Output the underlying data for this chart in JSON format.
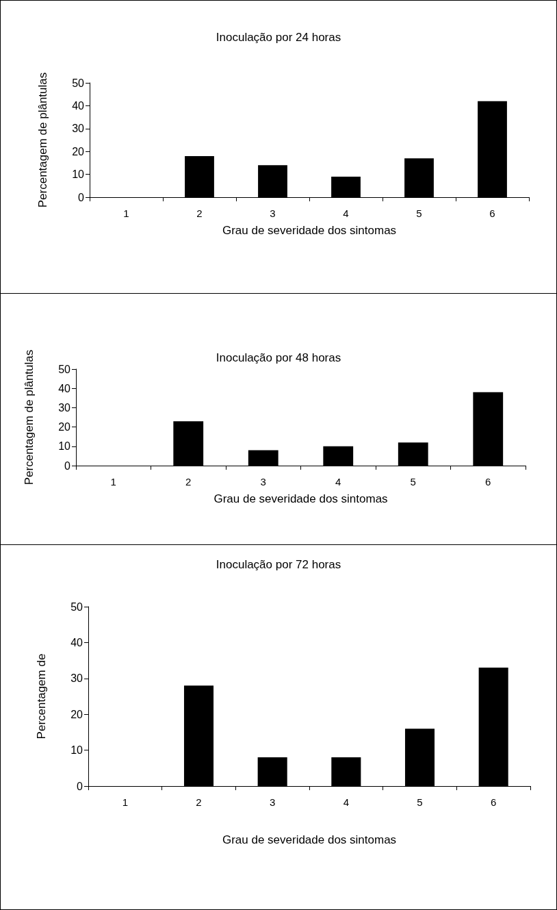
{
  "chart_data": [
    {
      "type": "bar",
      "title": "Inoculação por 24 horas",
      "xlabel": "Grau de severidade dos sintomas",
      "ylabel": "Percentagem de plântulas",
      "categories": [
        "1",
        "2",
        "3",
        "4",
        "5",
        "6"
      ],
      "values": [
        0,
        18,
        14,
        9,
        17,
        42
      ],
      "color": "#000000",
      "ylim": [
        0,
        50
      ],
      "yticks": [
        0,
        10,
        20,
        30,
        40,
        50
      ],
      "grid": false
    },
    {
      "type": "bar",
      "title": "Inoculação por 48 horas",
      "xlabel": "Grau de severidade dos sintomas",
      "ylabel": "Percentagem de plântulas",
      "categories": [
        "1",
        "2",
        "3",
        "4",
        "5",
        "6"
      ],
      "values": [
        0,
        23,
        8,
        10,
        12,
        38
      ],
      "color": "#000000",
      "ylim": [
        0,
        50
      ],
      "yticks": [
        0,
        10,
        20,
        30,
        40,
        50
      ],
      "grid": false
    },
    {
      "type": "bar",
      "title": "Inoculação por 72 horas",
      "xlabel": "Grau de severidade dos sintomas",
      "ylabel": "Percentagem de",
      "categories": [
        "1",
        "2",
        "3",
        "4",
        "5",
        "6"
      ],
      "values": [
        0,
        28,
        8,
        8,
        16,
        33
      ],
      "color": "#000000",
      "ylim": [
        0,
        50
      ],
      "yticks": [
        0,
        10,
        20,
        30,
        40,
        50
      ],
      "grid": false
    }
  ]
}
